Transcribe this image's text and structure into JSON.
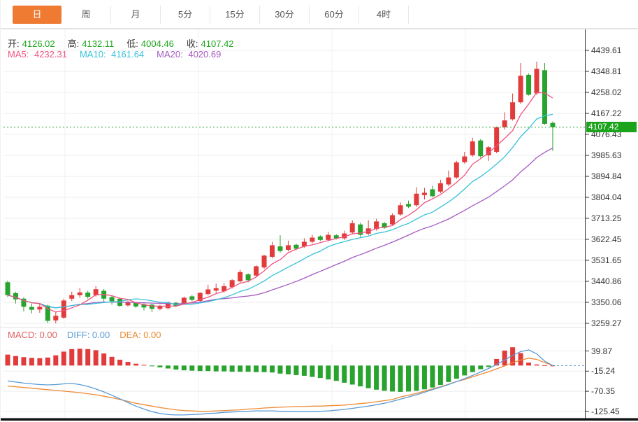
{
  "tabs": [
    {
      "name": "tab-day",
      "label": "日",
      "active": true
    },
    {
      "name": "tab-week",
      "label": "周",
      "active": false
    },
    {
      "name": "tab-month",
      "label": "月",
      "active": false
    },
    {
      "name": "tab-5min",
      "label": "5分",
      "active": false
    },
    {
      "name": "tab-15min",
      "label": "15分",
      "active": false
    },
    {
      "name": "tab-30min",
      "label": "30分",
      "active": false
    },
    {
      "name": "tab-60min",
      "label": "60分",
      "active": false
    },
    {
      "name": "tab-4hour",
      "label": "4时",
      "active": false
    }
  ],
  "legend": {
    "ohlc": [
      {
        "label": "开:",
        "value": "4126.02"
      },
      {
        "label": "高:",
        "value": "4132.11"
      },
      {
        "label": "低:",
        "value": "4004.46"
      },
      {
        "label": "收:",
        "value": "4107.42"
      }
    ],
    "ma": [
      {
        "label": "MA5:",
        "value": "4232.31",
        "color": "#ef5580"
      },
      {
        "label": "MA10:",
        "value": "4161.64",
        "color": "#36c2d8"
      },
      {
        "label": "MA20:",
        "value": "4020.69",
        "color": "#a55bc1"
      }
    ]
  },
  "price_axis": {
    "labels": [
      "4439.61",
      "4348.81",
      "4258.02",
      "4167.22",
      "4076.43",
      "3985.63",
      "3894.84",
      "3804.04",
      "3713.25",
      "3622.45",
      "3531.65",
      "3440.86",
      "3350.06",
      "3259.27"
    ],
    "badge": "4107.42"
  },
  "macd_panel": {
    "legend": [
      {
        "label": "MACD:",
        "value": "0.00",
        "color": "#e06060"
      },
      {
        "label": "DIFF:",
        "value": "0.00",
        "color": "#5b9bd5"
      },
      {
        "label": "DEA:",
        "value": "0.00",
        "color": "#ee8a33"
      }
    ],
    "axis_labels": [
      "39.87",
      "-15.24",
      "-70.35",
      "-125.45"
    ]
  },
  "colors": {
    "up": "#e23b3b",
    "down": "#28a32e",
    "badge_bg": "#1ba31b",
    "dotted_price_line": "#28a32e",
    "ma5": "#ef5580",
    "ma10": "#36c2d8",
    "ma20": "#a55bc1",
    "diff_line": "#5b9bd5",
    "dea_line": "#ee8a33",
    "tab_active_bg": "#ee7b31",
    "grid": "#ededed",
    "axis_line": "#333333",
    "separator": "#e3e3e3"
  },
  "chart_data": {
    "type": "candlestick",
    "title": "Daily candlestick chart with MA5/MA10/MA20 and MACD sub-chart",
    "legend_position": "top-left",
    "grid": true,
    "main": {
      "y_axis_ticks": [
        4439.61,
        4348.81,
        4258.02,
        4167.22,
        4076.43,
        3985.63,
        3894.84,
        3804.04,
        3713.25,
        3622.45,
        3531.65,
        3440.86,
        3350.06,
        3259.27
      ],
      "ylim": [
        3259.27,
        4439.61
      ],
      "last_price": 4107.42,
      "ohlc_display": {
        "open": 4126.02,
        "high": 4132.11,
        "low": 4004.46,
        "close": 4107.42
      },
      "ma_display": {
        "MA5": 4232.31,
        "MA10": 4161.64,
        "MA20": 4020.69
      },
      "candles_ohlc": [
        [
          3437,
          3444,
          3373,
          3381
        ],
        [
          3390,
          3396,
          3345,
          3363
        ],
        [
          3366,
          3372,
          3311,
          3331
        ],
        [
          3330,
          3345,
          3302,
          3318
        ],
        [
          3319,
          3346,
          3305,
          3331
        ],
        [
          3336,
          3340,
          3260,
          3270
        ],
        [
          3272,
          3310,
          3259,
          3292
        ],
        [
          3284,
          3366,
          3278,
          3358
        ],
        [
          3366,
          3396,
          3356,
          3381
        ],
        [
          3381,
          3412,
          3370,
          3393
        ],
        [
          3392,
          3400,
          3366,
          3374
        ],
        [
          3381,
          3420,
          3375,
          3407
        ],
        [
          3400,
          3408,
          3352,
          3366
        ],
        [
          3373,
          3378,
          3340,
          3355
        ],
        [
          3366,
          3370,
          3330,
          3335
        ],
        [
          3337,
          3358,
          3331,
          3352
        ],
        [
          3348,
          3352,
          3326,
          3332
        ],
        [
          3342,
          3346,
          3315,
          3328
        ],
        [
          3340,
          3344,
          3308,
          3322
        ],
        [
          3322,
          3340,
          3316,
          3335
        ],
        [
          3325,
          3355,
          3320,
          3350
        ],
        [
          3348,
          3352,
          3330,
          3335
        ],
        [
          3345,
          3375,
          3340,
          3370
        ],
        [
          3376,
          3382,
          3355,
          3361
        ],
        [
          3356,
          3394,
          3350,
          3391
        ],
        [
          3386,
          3426,
          3380,
          3406
        ],
        [
          3401,
          3431,
          3391,
          3411
        ],
        [
          3398,
          3433,
          3392,
          3420
        ],
        [
          3416,
          3450,
          3410,
          3446
        ],
        [
          3441,
          3491,
          3435,
          3481
        ],
        [
          3471,
          3476,
          3436,
          3446
        ],
        [
          3466,
          3510,
          3460,
          3506
        ],
        [
          3501,
          3556,
          3495,
          3552
        ],
        [
          3547,
          3612,
          3540,
          3597
        ],
        [
          3592,
          3640,
          3565,
          3572
        ],
        [
          3577,
          3617,
          3570,
          3597
        ],
        [
          3599,
          3604,
          3576,
          3582
        ],
        [
          3592,
          3627,
          3586,
          3612
        ],
        [
          3612,
          3642,
          3605,
          3630
        ],
        [
          3635,
          3640,
          3615,
          3620
        ],
        [
          3620,
          3655,
          3614,
          3642
        ],
        [
          3640,
          3645,
          3622,
          3627
        ],
        [
          3627,
          3660,
          3620,
          3648
        ],
        [
          3652,
          3705,
          3645,
          3692
        ],
        [
          3687,
          3695,
          3632,
          3642
        ],
        [
          3647,
          3705,
          3640,
          3670
        ],
        [
          3667,
          3712,
          3660,
          3700
        ],
        [
          3692,
          3698,
          3668,
          3672
        ],
        [
          3687,
          3735,
          3680,
          3727
        ],
        [
          3730,
          3782,
          3724,
          3770
        ],
        [
          3775,
          3790,
          3758,
          3764
        ],
        [
          3770,
          3848,
          3762,
          3820
        ],
        [
          3814,
          3845,
          3795,
          3824
        ],
        [
          3839,
          3855,
          3805,
          3809
        ],
        [
          3829,
          3880,
          3822,
          3865
        ],
        [
          3860,
          3920,
          3852,
          3890
        ],
        [
          3890,
          3962,
          3884,
          3955
        ],
        [
          3956,
          4001,
          3950,
          3981
        ],
        [
          3986,
          4062,
          3980,
          4046
        ],
        [
          4050,
          4056,
          3975,
          3982
        ],
        [
          3986,
          4026,
          3962,
          4021
        ],
        [
          4001,
          4110,
          3995,
          4107
        ],
        [
          4107,
          4172,
          4097,
          4137
        ],
        [
          4142,
          4253,
          4136,
          4215
        ],
        [
          4215,
          4385,
          4208,
          4330
        ],
        [
          4334,
          4340,
          4244,
          4248
        ],
        [
          4254,
          4391,
          4248,
          4360
        ],
        [
          4354,
          4385,
          4118,
          4122
        ],
        [
          4126.02,
          4132.11,
          4004.46,
          4107.42
        ]
      ]
    },
    "macd": {
      "y_axis_ticks": [
        39.87,
        -15.24,
        -70.35,
        -125.45
      ],
      "display": {
        "MACD": 0.0,
        "DIFF": 0.0,
        "DEA": 0.0
      },
      "histogram": [
        30,
        26,
        23,
        21,
        20,
        22,
        28,
        38,
        45,
        46,
        45,
        42,
        33,
        24,
        16,
        10,
        5,
        2,
        -2,
        -5,
        -8,
        -11,
        -13,
        -14,
        -15,
        -15,
        -16,
        -16,
        -17,
        -17,
        -17,
        -18,
        -18,
        -19,
        -22,
        -24,
        -26,
        -28,
        -31,
        -34,
        -38,
        -42,
        -47,
        -52,
        -57,
        -62,
        -66,
        -69,
        -71,
        -72,
        -71,
        -69,
        -65,
        -60,
        -53,
        -45,
        -36,
        -27,
        -18,
        -10,
        -4,
        18,
        41,
        50,
        34,
        8,
        3,
        1,
        0
      ],
      "diff": [
        -42,
        -45,
        -48,
        -50,
        -52,
        -53,
        -52,
        -50,
        -49,
        -52,
        -57,
        -64,
        -72,
        -81,
        -91,
        -101,
        -111,
        -119,
        -126,
        -131,
        -134,
        -135,
        -135,
        -134,
        -133,
        -131,
        -130,
        -128,
        -127,
        -126,
        -125,
        -124,
        -124,
        -124,
        -125,
        -125,
        -126,
        -126,
        -126,
        -125,
        -124,
        -122,
        -120,
        -117,
        -114,
        -111,
        -107,
        -103,
        -98,
        -92,
        -86,
        -80,
        -73,
        -66,
        -59,
        -52,
        -44,
        -36,
        -27,
        -18,
        -8,
        3,
        15,
        28,
        38,
        43,
        32,
        12,
        0
      ],
      "dea": [
        -56,
        -58,
        -60,
        -62,
        -64,
        -66,
        -68,
        -70,
        -72,
        -74,
        -77,
        -80,
        -84,
        -88,
        -93,
        -98,
        -103,
        -107,
        -111,
        -115,
        -118,
        -121,
        -123,
        -124,
        -125,
        -125,
        -124,
        -123,
        -122,
        -121,
        -119,
        -118,
        -116,
        -115,
        -114,
        -113,
        -112,
        -112,
        -111,
        -111,
        -110,
        -109,
        -108,
        -106,
        -104,
        -102,
        -99,
        -96,
        -93,
        -86,
        -81,
        -76,
        -70,
        -64,
        -58,
        -51,
        -44,
        -38,
        -31,
        -24,
        -17,
        -9,
        -1,
        8,
        15,
        20,
        17,
        8,
        0
      ]
    }
  }
}
